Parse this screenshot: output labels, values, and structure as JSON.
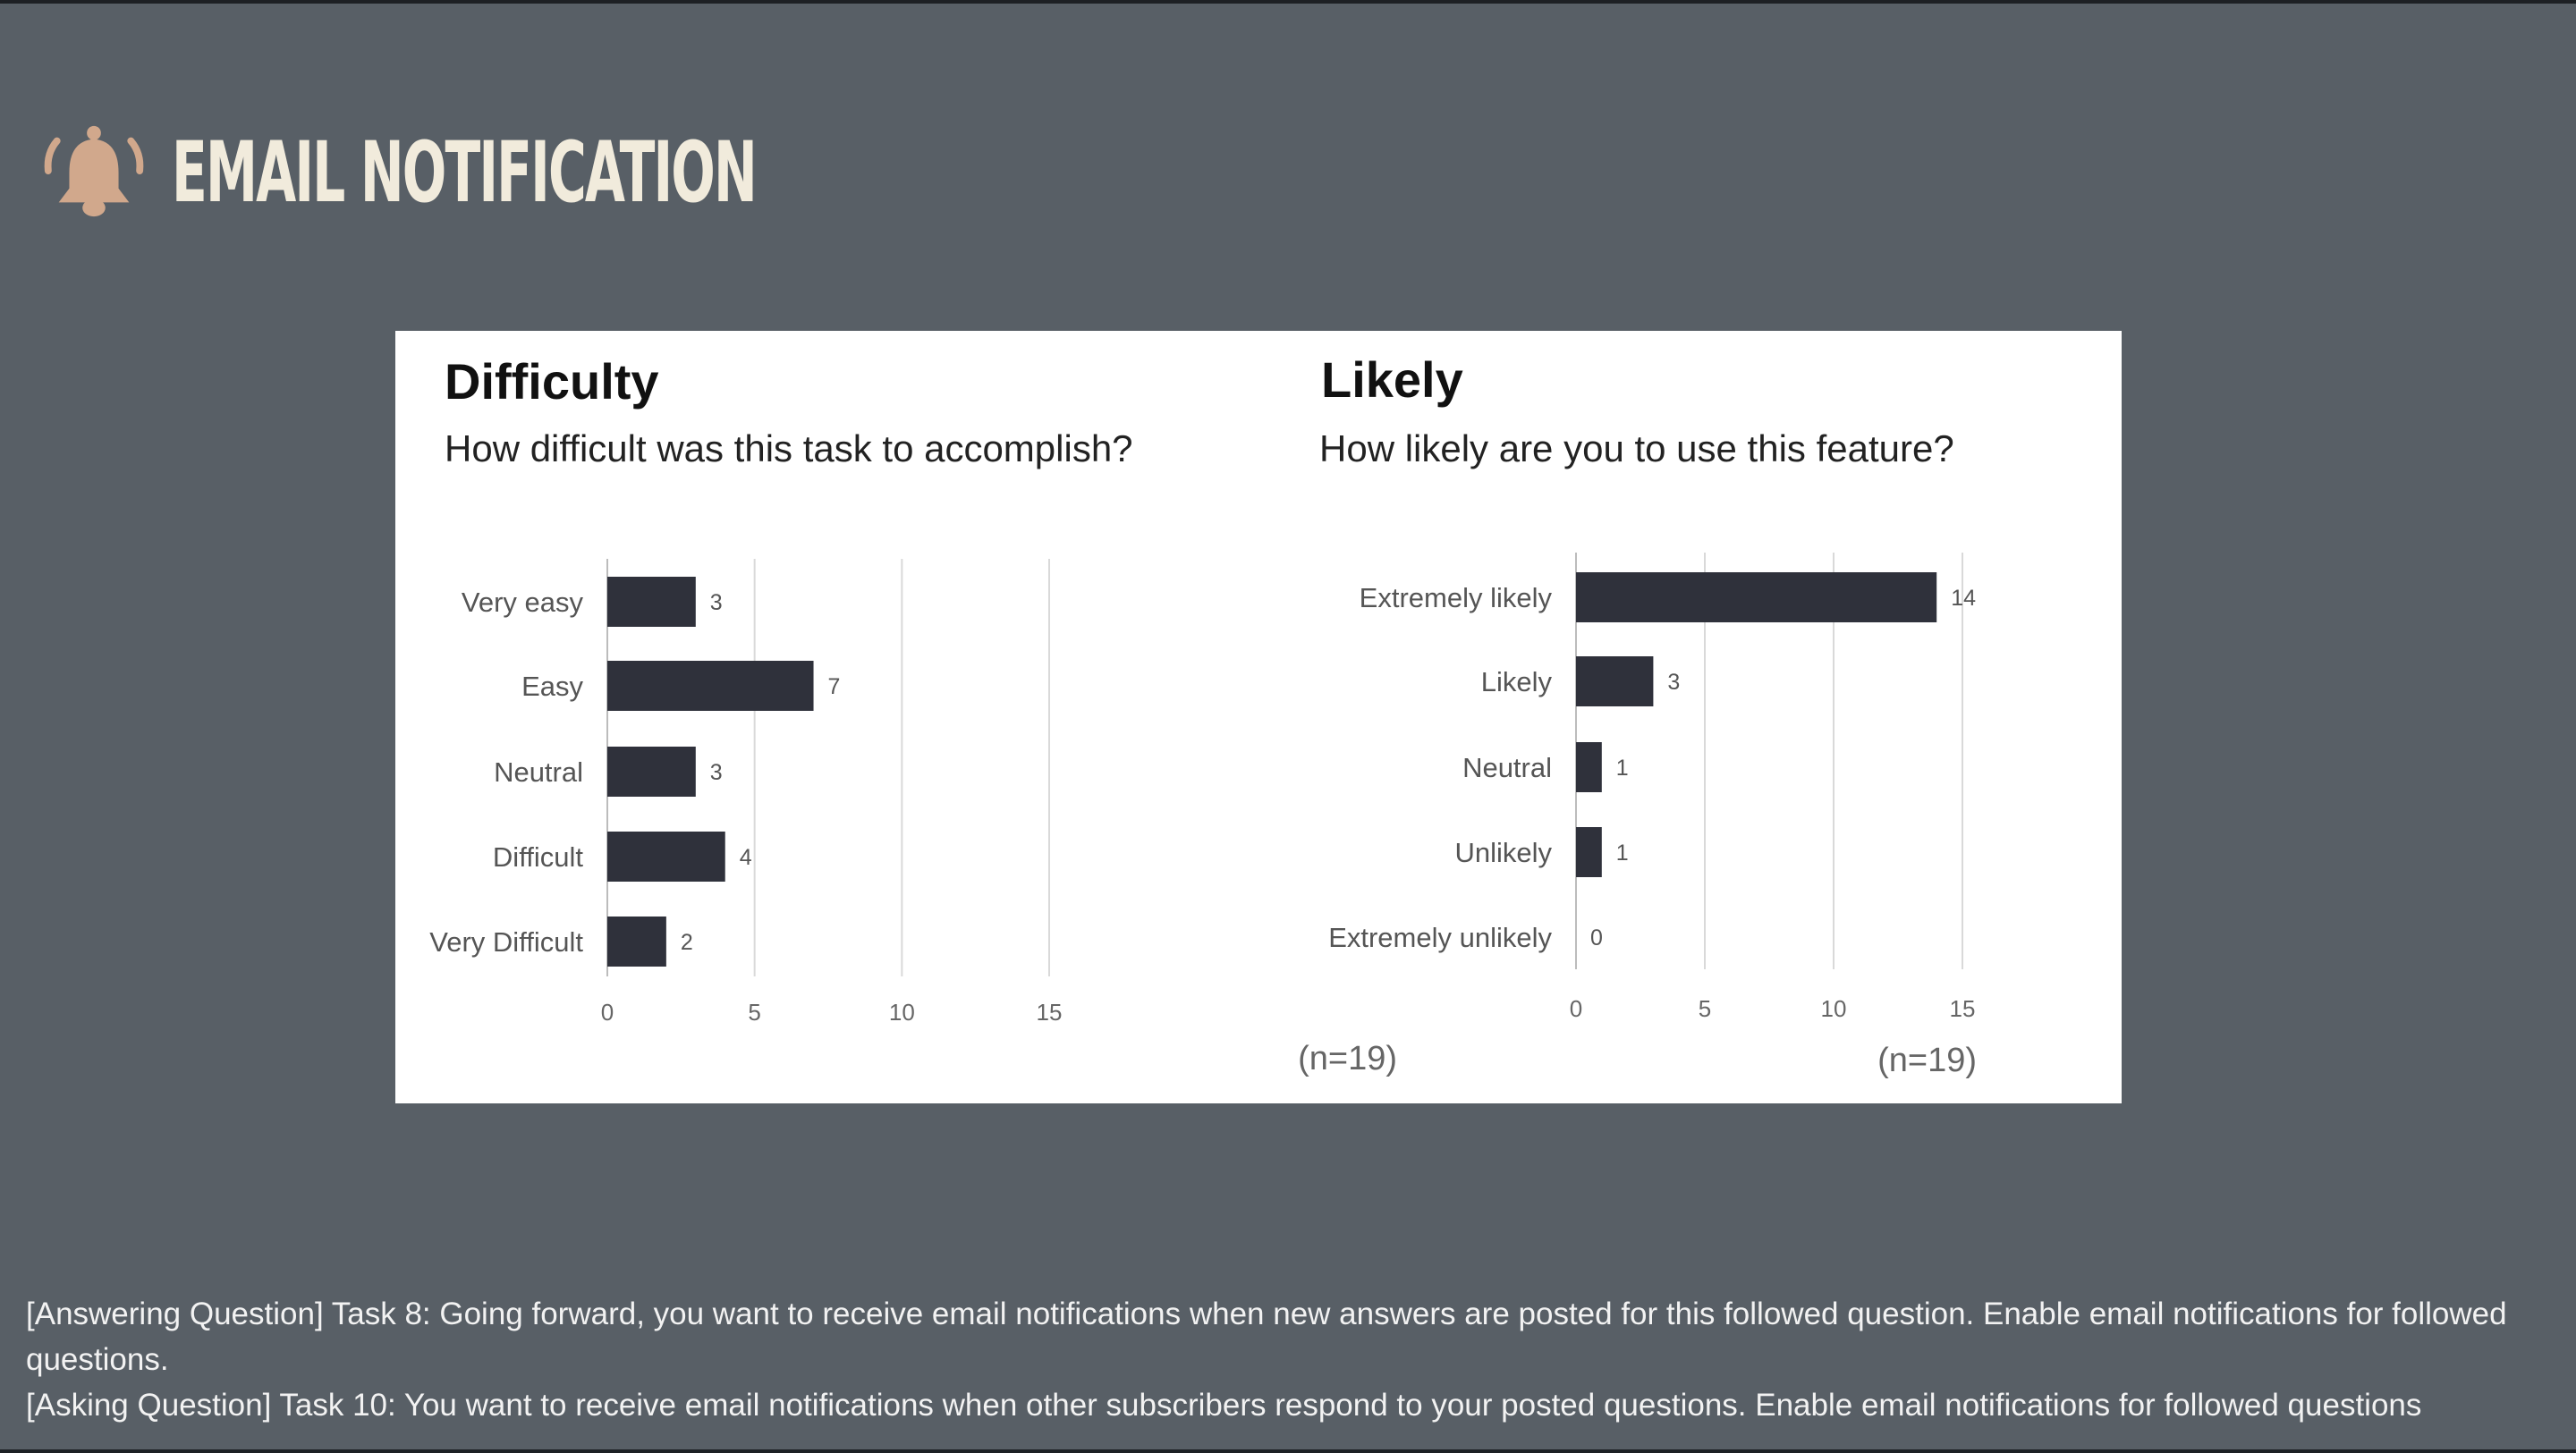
{
  "slide": {
    "title": "EMAIL NOTIFICATION",
    "icon": "bell-icon",
    "notes": [
      "[Answering Question] Task 8: Going forward, you want to receive email notifications when new answers are posted for this followed question. Enable email notifications for followed questions.",
      "[Asking Question] Task 10: You want to receive email notifications when other subscribers respond to your posted questions. Enable email notifications for followed questions"
    ]
  },
  "chart_data": [
    {
      "type": "bar",
      "orientation": "horizontal",
      "title": "Difficulty",
      "subtitle": "How difficult was this task to accomplish?",
      "categories": [
        "Very easy",
        "Easy",
        "Neutral",
        "Difficult",
        "Very Difficult"
      ],
      "values": [
        3,
        7,
        3,
        4,
        2
      ],
      "xlim": [
        0,
        15
      ],
      "xticks": [
        0,
        5,
        10,
        15
      ],
      "note": "(n=19)",
      "bar_color": "#2f313b",
      "grid": true
    },
    {
      "type": "bar",
      "orientation": "horizontal",
      "title": "Likely",
      "subtitle": "How likely are you to use this feature?",
      "categories": [
        "Extremely likely",
        "Likely",
        "Neutral",
        "Unlikely",
        "Extremely unlikely"
      ],
      "values": [
        14,
        3,
        1,
        1,
        0
      ],
      "xlim": [
        0,
        15
      ],
      "xticks": [
        0,
        5,
        10,
        15
      ],
      "note": "(n=19)",
      "bar_color": "#2f313b",
      "grid": true
    }
  ]
}
